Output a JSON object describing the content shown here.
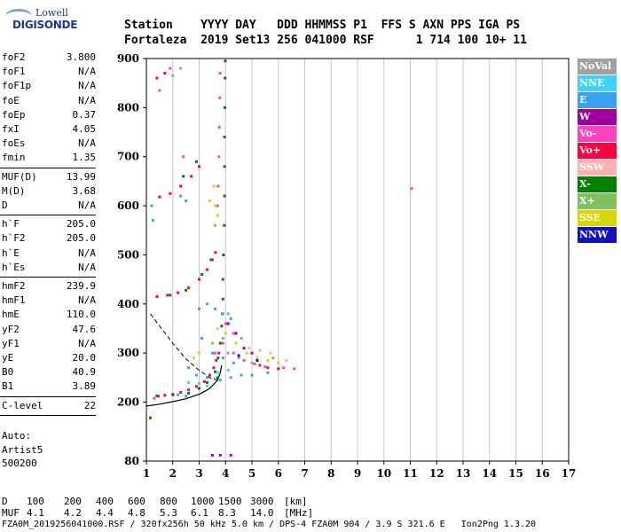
{
  "logo": {
    "line1": "Lowell",
    "line2": "DIGISONDE"
  },
  "header": {
    "line1": "Station    YYYY DAY   DDD HHMMSS P1  FFS S AXN PPS IGA PS",
    "line2": "Fortaleza  2019 Set13 256 041000 RSF      1 714 100 10+ 11"
  },
  "params": {
    "group1": [
      {
        "label": "foF2",
        "value": "3.800"
      },
      {
        "label": "foF1",
        "value": "N/A"
      },
      {
        "label": "foF1p",
        "value": "N/A"
      },
      {
        "label": "foE",
        "value": "N/A"
      },
      {
        "label": "foEp",
        "value": "0.37"
      },
      {
        "label": "fxI",
        "value": "4.05"
      },
      {
        "label": "foEs",
        "value": "N/A"
      },
      {
        "label": "fmin",
        "value": "1.35"
      }
    ],
    "group2": [
      {
        "label": "MUF(D)",
        "value": "13.99"
      },
      {
        "label": "M(D)",
        "value": "3.68"
      },
      {
        "label": "D",
        "value": "N/A"
      }
    ],
    "group3": [
      {
        "label": "h`F",
        "value": "205.0"
      },
      {
        "label": "h`F2",
        "value": "205.0"
      },
      {
        "label": "h`E",
        "value": "N/A"
      },
      {
        "label": "h`Es",
        "value": "N/A"
      }
    ],
    "group4": [
      {
        "label": "hmF2",
        "value": "239.9"
      },
      {
        "label": "hmF1",
        "value": "N/A"
      },
      {
        "label": "hmE",
        "value": "110.0"
      },
      {
        "label": "yF2",
        "value": "47.6"
      },
      {
        "label": "yF1",
        "value": "N/A"
      },
      {
        "label": "yE",
        "value": "20.0"
      },
      {
        "label": "B0",
        "value": "40.9"
      },
      {
        "label": "B1",
        "value": "3.89"
      }
    ],
    "group5": [
      {
        "label": "C-level",
        "value": "22"
      }
    ]
  },
  "auto": {
    "line1": "Auto:",
    "line2": "Artist5",
    "line3": "500200"
  },
  "legend": [
    {
      "label": "NoVal",
      "color": "#a0a0a0"
    },
    {
      "label": "NNE",
      "color": "#40d0ff"
    },
    {
      "label": "E",
      "color": "#3aa0f0"
    },
    {
      "label": "W",
      "color": "#a000a0"
    },
    {
      "label": "Vo-",
      "color": "#ff40c0"
    },
    {
      "label": "Vo+",
      "color": "#ff0040"
    },
    {
      "label": "SSW",
      "color": "#ffb0b0"
    },
    {
      "label": "X-",
      "color": "#008000"
    },
    {
      "label": "X+",
      "color": "#80c060"
    },
    {
      "label": "SSE",
      "color": "#d8d800"
    },
    {
      "label": "NNW",
      "color": "#1010c0"
    }
  ],
  "footer": {
    "d_label": "D",
    "d_values": [
      "100",
      "200",
      "400",
      "600",
      "800",
      "1000",
      "1500",
      "3000",
      "[km]"
    ],
    "muf_label": "MUF",
    "muf_values": [
      "4.1",
      "4.2",
      "4.4",
      "4.8",
      "5.3",
      "6.1",
      "8.3",
      "14.0",
      "[MHz]"
    ],
    "line3": "FZA0M_2019256041000.RSF / 320fx256h 50 kHz 5.0 km / DPS-4 FZA0M 904 / 3.9 S 321.6 E   Ion2Png 1.3.20"
  },
  "chart_data": {
    "type": "scatter",
    "xlim": [
      1,
      17
    ],
    "ylim": [
      80,
      900
    ],
    "x_ticks": [
      1,
      2,
      3,
      4,
      5,
      6,
      7,
      8,
      9,
      10,
      11,
      12,
      13,
      14,
      15,
      16,
      17
    ],
    "y_ticks": [
      80,
      200,
      300,
      400,
      500,
      600,
      700,
      800,
      900
    ],
    "grid": "x",
    "series": [
      {
        "name": "Vo+",
        "color": "#ff0040",
        "points": [
          [
            1.45,
            212
          ],
          [
            1.7,
            214
          ],
          [
            2.0,
            216
          ],
          [
            2.3,
            220
          ],
          [
            2.6,
            225
          ],
          [
            2.9,
            232
          ],
          [
            3.2,
            242
          ],
          [
            3.4,
            255
          ],
          [
            3.55,
            270
          ],
          [
            3.65,
            285
          ],
          [
            3.75,
            300
          ],
          [
            1.4,
            415
          ],
          [
            1.8,
            418
          ],
          [
            2.2,
            423
          ],
          [
            2.6,
            433
          ],
          [
            3.0,
            450
          ],
          [
            3.3,
            470
          ],
          [
            3.5,
            490
          ],
          [
            3.62,
            505
          ],
          [
            1.5,
            618
          ],
          [
            1.9,
            625
          ],
          [
            2.3,
            640
          ],
          [
            2.7,
            660
          ],
          [
            3.0,
            680
          ],
          [
            1.4,
            860
          ],
          [
            1.7,
            870
          ],
          [
            5.3,
            275
          ],
          [
            5.6,
            270
          ],
          [
            6.0,
            268
          ]
        ]
      },
      {
        "name": "Vo-",
        "color": "#ff40c0",
        "points": [
          [
            1.3,
            208
          ],
          [
            3.9,
            320
          ],
          [
            4.3,
            300
          ],
          [
            4.7,
            285
          ],
          [
            5.1,
            278
          ],
          [
            5.5,
            272
          ],
          [
            6.2,
            270
          ],
          [
            6.6,
            268
          ],
          [
            3.7,
            600
          ],
          [
            3.72,
            640
          ],
          [
            3.75,
            700
          ],
          [
            3.76,
            760
          ],
          [
            3.78,
            820
          ],
          [
            3.8,
            870
          ],
          [
            11.05,
            635
          ],
          [
            1.5,
            835
          ],
          [
            1.9,
            880
          ],
          [
            2.4,
            700
          ],
          [
            4.0,
            360
          ],
          [
            3.6,
            300
          ],
          [
            4.3,
            340
          ]
        ]
      },
      {
        "name": "X-",
        "color": "#008000",
        "points": [
          [
            1.4,
            213
          ],
          [
            2.0,
            215
          ],
          [
            2.6,
            218
          ],
          [
            3.0,
            228
          ],
          [
            3.3,
            240
          ],
          [
            3.6,
            262
          ],
          [
            3.72,
            290
          ],
          [
            3.8,
            320
          ],
          [
            3.85,
            355
          ],
          [
            3.88,
            380
          ],
          [
            3.9,
            410
          ],
          [
            3.9,
            450
          ],
          [
            3.92,
            500
          ],
          [
            3.95,
            560
          ],
          [
            3.96,
            620
          ],
          [
            3.96,
            680
          ],
          [
            3.96,
            740
          ],
          [
            3.97,
            800
          ],
          [
            3.98,
            860
          ],
          [
            3.99,
            895
          ],
          [
            1.15,
            168
          ],
          [
            1.9,
            418
          ],
          [
            2.5,
            428
          ],
          [
            3.1,
            460
          ],
          [
            3.45,
            490
          ],
          [
            2.4,
            660
          ],
          [
            2.9,
            690
          ],
          [
            3.7,
            250
          ]
        ]
      },
      {
        "name": "X+",
        "color": "#80c060",
        "points": [
          [
            3.5,
            320
          ],
          [
            3.9,
            330
          ],
          [
            4.1,
            300
          ],
          [
            4.5,
            290
          ],
          [
            5.0,
            280
          ],
          [
            2.3,
            880
          ],
          [
            2.0,
            865
          ],
          [
            3.6,
            560
          ]
        ]
      },
      {
        "name": "E",
        "color": "#3aa0f0",
        "points": [
          [
            1.2,
            600
          ],
          [
            1.25,
            570
          ],
          [
            2.3,
            620
          ],
          [
            2.5,
            610
          ],
          [
            3.3,
            400
          ],
          [
            3.6,
            390
          ],
          [
            3.9,
            380
          ],
          [
            4.2,
            370
          ],
          [
            3.1,
            330
          ],
          [
            3.5,
            300
          ],
          [
            3.9,
            290
          ],
          [
            4.3,
            280
          ],
          [
            2.6,
            270
          ],
          [
            2.9,
            255
          ],
          [
            3.3,
            250
          ],
          [
            3.8,
            245
          ],
          [
            4.2,
            250
          ],
          [
            4.6,
            255
          ],
          [
            5.0,
            255
          ],
          [
            5.6,
            260
          ],
          [
            2.2,
            215
          ],
          [
            2.5,
            212
          ],
          [
            3.0,
            390
          ]
        ]
      },
      {
        "name": "NNE",
        "color": "#40d0ff",
        "points": [
          [
            2.6,
            240
          ],
          [
            3.0,
            238
          ],
          [
            3.3,
            233
          ],
          [
            3.7,
            260
          ],
          [
            4.1,
            265
          ]
        ]
      },
      {
        "name": "SSE",
        "color": "#d8d800",
        "points": [
          [
            3.4,
            610
          ],
          [
            3.55,
            640
          ],
          [
            3.6,
            600
          ],
          [
            3.7,
            580
          ],
          [
            4.0,
            340
          ],
          [
            4.4,
            320
          ],
          [
            4.8,
            300
          ],
          [
            5.2,
            290
          ],
          [
            5.6,
            285
          ],
          [
            6.0,
            280
          ],
          [
            3.0,
            300
          ],
          [
            2.8,
            290
          ]
        ]
      },
      {
        "name": "W",
        "color": "#a000a0",
        "points": [
          [
            3.5,
            92
          ],
          [
            3.8,
            92
          ],
          [
            4.2,
            92
          ],
          [
            4.4,
            340
          ],
          [
            4.7,
            310
          ],
          [
            5.0,
            300
          ],
          [
            4.1,
            360
          ]
        ]
      },
      {
        "name": "SSW",
        "color": "#ffb0b0",
        "points": [
          [
            4.9,
            310
          ],
          [
            5.3,
            305
          ],
          [
            5.7,
            300
          ],
          [
            6.3,
            285
          ],
          [
            3.7,
            350
          ]
        ]
      },
      {
        "name": "NNW",
        "color": "#1010c0",
        "points": [
          [
            4.5,
            295
          ],
          [
            5.2,
            285
          ]
        ]
      },
      {
        "name": "NoVal",
        "color": "#a0a0a0",
        "points": [
          [
            4.1,
            380
          ],
          [
            4.6,
            330
          ],
          [
            5.8,
            290
          ]
        ]
      }
    ],
    "profile_solid": [
      [
        1.0,
        192
      ],
      [
        1.5,
        196
      ],
      [
        2.0,
        201
      ],
      [
        2.5,
        207
      ],
      [
        3.0,
        216
      ],
      [
        3.4,
        228
      ],
      [
        3.7,
        245
      ],
      [
        3.8,
        260
      ],
      [
        3.85,
        275
      ]
    ],
    "profile_dashed": [
      [
        1.15,
        380
      ],
      [
        1.5,
        355
      ],
      [
        2.0,
        320
      ],
      [
        2.5,
        288
      ],
      [
        3.0,
        265
      ],
      [
        3.4,
        250
      ],
      [
        3.7,
        245
      ]
    ]
  }
}
